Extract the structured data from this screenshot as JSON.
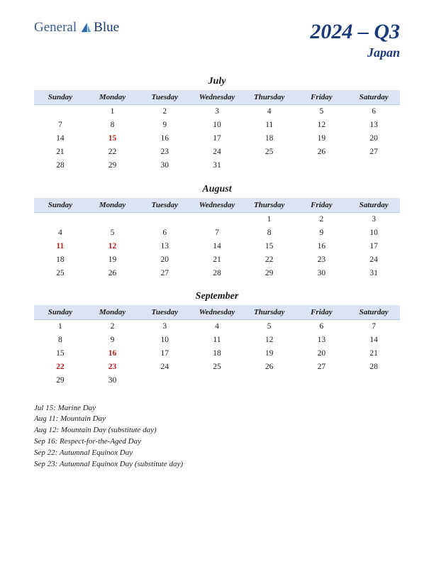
{
  "logo": {
    "part1": "General",
    "part2": "Blue"
  },
  "title": "2024 – Q3",
  "subtitle": "Japan",
  "colors": {
    "header_bg": "#dae4f2",
    "header_border": "#b8c8de",
    "title_color": "#1a3a7a",
    "holiday_color": "#b02020",
    "text_color": "#1a1a1a",
    "logo_color1": "#3a5a8a",
    "logo_color2": "#1a3a6a",
    "logo_icon_fill": "#2a6aa8"
  },
  "day_headers": [
    "Sunday",
    "Monday",
    "Tuesday",
    "Wednesday",
    "Thursday",
    "Friday",
    "Saturday"
  ],
  "months": [
    {
      "name": "July",
      "weeks": [
        [
          null,
          {
            "d": 1
          },
          {
            "d": 2
          },
          {
            "d": 3
          },
          {
            "d": 4
          },
          {
            "d": 5
          },
          {
            "d": 6
          }
        ],
        [
          {
            "d": 7
          },
          {
            "d": 8
          },
          {
            "d": 9
          },
          {
            "d": 10
          },
          {
            "d": 11
          },
          {
            "d": 12
          },
          {
            "d": 13
          }
        ],
        [
          {
            "d": 14
          },
          {
            "d": 15,
            "h": true
          },
          {
            "d": 16
          },
          {
            "d": 17
          },
          {
            "d": 18
          },
          {
            "d": 19
          },
          {
            "d": 20
          }
        ],
        [
          {
            "d": 21
          },
          {
            "d": 22
          },
          {
            "d": 23
          },
          {
            "d": 24
          },
          {
            "d": 25
          },
          {
            "d": 26
          },
          {
            "d": 27
          }
        ],
        [
          {
            "d": 28
          },
          {
            "d": 29
          },
          {
            "d": 30
          },
          {
            "d": 31
          },
          null,
          null,
          null
        ]
      ]
    },
    {
      "name": "August",
      "weeks": [
        [
          null,
          null,
          null,
          null,
          {
            "d": 1
          },
          {
            "d": 2
          },
          {
            "d": 3
          }
        ],
        [
          {
            "d": 4
          },
          {
            "d": 5
          },
          {
            "d": 6
          },
          {
            "d": 7
          },
          {
            "d": 8
          },
          {
            "d": 9
          },
          {
            "d": 10
          }
        ],
        [
          {
            "d": 11,
            "h": true
          },
          {
            "d": 12,
            "h": true
          },
          {
            "d": 13
          },
          {
            "d": 14
          },
          {
            "d": 15
          },
          {
            "d": 16
          },
          {
            "d": 17
          }
        ],
        [
          {
            "d": 18
          },
          {
            "d": 19
          },
          {
            "d": 20
          },
          {
            "d": 21
          },
          {
            "d": 22
          },
          {
            "d": 23
          },
          {
            "d": 24
          }
        ],
        [
          {
            "d": 25
          },
          {
            "d": 26
          },
          {
            "d": 27
          },
          {
            "d": 28
          },
          {
            "d": 29
          },
          {
            "d": 30
          },
          {
            "d": 31
          }
        ]
      ]
    },
    {
      "name": "September",
      "weeks": [
        [
          {
            "d": 1
          },
          {
            "d": 2
          },
          {
            "d": 3
          },
          {
            "d": 4
          },
          {
            "d": 5
          },
          {
            "d": 6
          },
          {
            "d": 7
          }
        ],
        [
          {
            "d": 8
          },
          {
            "d": 9
          },
          {
            "d": 10
          },
          {
            "d": 11
          },
          {
            "d": 12
          },
          {
            "d": 13
          },
          {
            "d": 14
          }
        ],
        [
          {
            "d": 15
          },
          {
            "d": 16,
            "h": true
          },
          {
            "d": 17
          },
          {
            "d": 18
          },
          {
            "d": 19
          },
          {
            "d": 20
          },
          {
            "d": 21
          }
        ],
        [
          {
            "d": 22,
            "h": true
          },
          {
            "d": 23,
            "h": true
          },
          {
            "d": 24
          },
          {
            "d": 25
          },
          {
            "d": 26
          },
          {
            "d": 27
          },
          {
            "d": 28
          }
        ],
        [
          {
            "d": 29
          },
          {
            "d": 30
          },
          null,
          null,
          null,
          null,
          null
        ]
      ]
    }
  ],
  "notes": [
    "Jul 15: Marine Day",
    "Aug 11: Mountain Day",
    "Aug 12: Mountain Day (substitute day)",
    "Sep 16: Respect-for-the-Aged Day",
    "Sep 22: Autumnal Equinox Day",
    "Sep 23: Autumnal Equinox Day (substitute day)"
  ]
}
